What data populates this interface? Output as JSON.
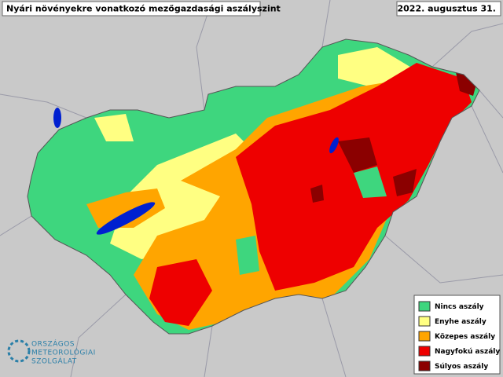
{
  "header": {
    "title": "Nyári növényekre vonatkozó mezőgazdasági aszályszint",
    "date": "2022. augusztus 31."
  },
  "legend": {
    "items": [
      {
        "label": "Nincs aszály",
        "color": "#3ed67e"
      },
      {
        "label": "Enyhe aszály",
        "color": "#ffff82"
      },
      {
        "label": "Közepes aszály",
        "color": "#ffa500"
      },
      {
        "label": "Nagyfokú aszály",
        "color": "#ee0000"
      },
      {
        "label": "Súlyos aszály",
        "color": "#8b0000"
      }
    ]
  },
  "logo": {
    "lines": [
      "ORSZÁGOS",
      "METEOROLÓGIAI",
      "SZOLGÁLAT"
    ]
  }
}
